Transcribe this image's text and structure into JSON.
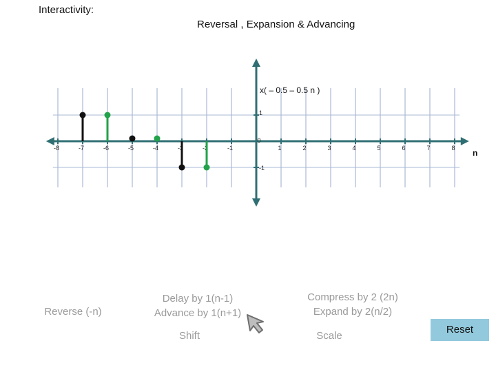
{
  "header": {
    "interactivity_label": "Interactivity:",
    "title": "Reversal , Expansion & Advancing"
  },
  "chart_data": {
    "type": "stem",
    "function_label": "x( – 0.5 – 0.5 n )",
    "xlabel": "n",
    "x_ticks": [
      -8,
      -7,
      -6,
      -5,
      -4,
      -3,
      -2,
      -1,
      0,
      1,
      2,
      3,
      4,
      5,
      6,
      7,
      8
    ],
    "y_ticks": [
      1,
      -1
    ],
    "xlim": [
      -9,
      9
    ],
    "ylim": [
      -2,
      2
    ],
    "series": [
      {
        "color": "#111111",
        "points": [
          {
            "x": -7,
            "y": 1
          },
          {
            "x": -5,
            "y": 0
          },
          {
            "x": -3,
            "y": -1
          }
        ]
      },
      {
        "color": "#22a24a",
        "points": [
          {
            "x": -6,
            "y": 1
          },
          {
            "x": -4,
            "y": 0
          },
          {
            "x": -2,
            "y": -1
          }
        ]
      }
    ],
    "grid": true
  },
  "colors": {
    "axis": "#2f6f73",
    "grid": "#aab8d6",
    "stem_black": "#111111",
    "stem_green": "#22a24a",
    "reset_bg": "#93c9dc",
    "control_text": "#9a9a9a"
  },
  "controls": {
    "reverse": "Reverse (-n)",
    "delay": "Delay by 1(n-1)",
    "advance": "Advance by 1(n+1)",
    "shift": "Shift",
    "compress": "Compress by 2 (2n)",
    "expand": "Expand by 2(n/2)",
    "scale": "Scale",
    "reset": "Reset",
    "cursor_icon": "arrow-cursor-icon"
  }
}
